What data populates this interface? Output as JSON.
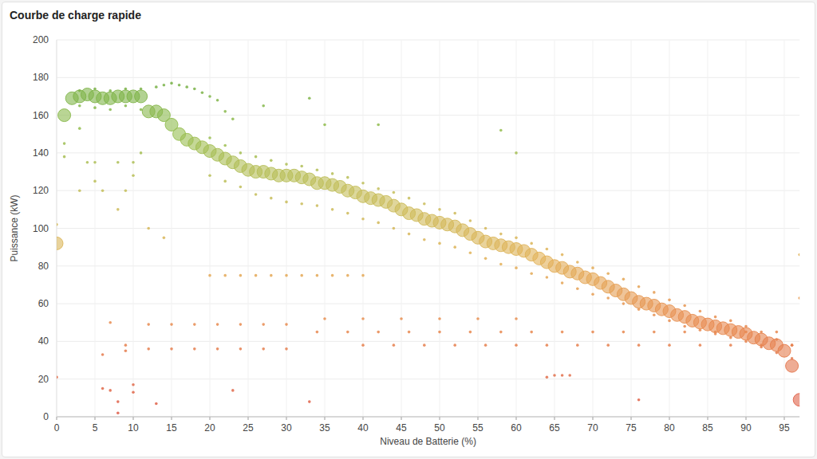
{
  "chart_data": {
    "type": "scatter",
    "title": "Courbe de charge rapide",
    "x_label": "Niveau de Batterie (%)",
    "y_label": "Puissance (kW)",
    "xlim": [
      0,
      97
    ],
    "xticks": [
      0,
      5,
      10,
      15,
      20,
      25,
      30,
      35,
      40,
      45,
      50,
      55,
      60,
      65,
      70,
      75,
      80,
      85,
      90,
      95
    ],
    "ylim": [
      0,
      200
    ],
    "yticks": [
      0,
      20,
      40,
      60,
      80,
      100,
      120,
      140,
      160,
      180,
      200
    ],
    "grid": true,
    "series": [
      {
        "marker": "dot",
        "x": [
          20,
          22,
          24,
          26,
          28,
          30,
          32,
          34,
          36,
          38,
          40,
          42,
          44,
          46,
          48,
          50,
          52,
          54,
          56,
          58,
          60,
          62,
          64,
          66,
          68,
          70,
          72,
          74,
          76,
          78,
          80,
          82,
          84,
          86,
          88,
          90,
          92,
          94,
          96,
          20,
          22,
          24,
          26,
          28,
          30,
          32,
          34,
          36,
          38,
          40,
          42,
          44,
          46,
          48,
          50,
          52,
          54,
          56,
          58,
          60,
          62,
          64,
          66,
          68,
          70,
          72,
          74,
          76,
          78,
          80,
          82,
          84,
          86,
          88,
          90,
          92,
          94,
          96,
          20,
          22,
          24,
          26,
          28,
          30,
          32,
          34,
          36,
          38,
          40,
          12,
          15,
          18,
          21,
          24,
          27,
          30,
          34,
          38,
          42,
          46,
          50,
          54,
          58,
          62,
          66,
          70,
          74,
          78,
          82,
          86,
          90,
          94,
          35,
          40,
          45,
          50,
          55,
          60,
          12,
          15,
          18,
          21,
          24,
          27,
          30,
          40,
          44,
          48,
          52,
          56,
          60,
          64,
          68,
          72,
          76,
          80,
          84,
          88,
          92,
          96,
          3,
          5,
          7,
          9,
          11,
          3,
          5,
          7,
          9,
          11,
          5,
          8,
          10,
          13,
          14,
          15,
          16,
          17,
          18,
          19,
          20,
          21,
          22,
          23,
          0,
          0,
          6,
          7,
          8,
          8,
          10,
          10,
          13,
          23,
          33,
          76,
          64,
          65,
          66,
          67,
          97,
          97,
          33,
          35,
          42,
          58,
          60,
          27,
          1,
          1,
          3,
          4,
          5,
          6,
          8,
          9,
          10,
          11,
          7,
          6,
          9,
          9,
          12,
          14,
          3
        ],
        "values": [
          148,
          144,
          140,
          138,
          136,
          134,
          133,
          131,
          129,
          127,
          124,
          121,
          119,
          116,
          113,
          110,
          108,
          104,
          100,
          97,
          95,
          92,
          89,
          86,
          82,
          79,
          76,
          73,
          69,
          66,
          62,
          59,
          56,
          53,
          51,
          48,
          45,
          41,
          38,
          128,
          125,
          122,
          118,
          116,
          114,
          113,
          112,
          110,
          108,
          105,
          103,
          100,
          97,
          94,
          92,
          90,
          87,
          84,
          81,
          79,
          76,
          74,
          71,
          68,
          65,
          63,
          60,
          57,
          54,
          51,
          48,
          46,
          44,
          42,
          40,
          37,
          34,
          31,
          75,
          75,
          75,
          75,
          75,
          75,
          75,
          75,
          75,
          75,
          75,
          49,
          49,
          49,
          49,
          49,
          49,
          49,
          45,
          45,
          45,
          45,
          45,
          45,
          45,
          45,
          45,
          45,
          45,
          45,
          45,
          45,
          45,
          45,
          52,
          52,
          52,
          52,
          52,
          52,
          36,
          36,
          36,
          36,
          36,
          36,
          36,
          38,
          38,
          38,
          38,
          38,
          38,
          38,
          38,
          38,
          38,
          38,
          38,
          38,
          38,
          38,
          173,
          174,
          173,
          174,
          174,
          165,
          164,
          163,
          165,
          163,
          135,
          135,
          128,
          175,
          176,
          177,
          176,
          175,
          174,
          172,
          170,
          168,
          162,
          158,
          21,
          102,
          15,
          14,
          2,
          8,
          13,
          17,
          7,
          14,
          8,
          9,
          21,
          22,
          22,
          22,
          86,
          63,
          169,
          155,
          155,
          152,
          140,
          165,
          145,
          138,
          153,
          135,
          125,
          120,
          110,
          120,
          135,
          140,
          50,
          33,
          38,
          35,
          100,
          95,
          120
        ]
      },
      {
        "marker": "bubble",
        "x": [
          0,
          1,
          2,
          3,
          4,
          5,
          6,
          7,
          8,
          9,
          10,
          11,
          12,
          13,
          14,
          15,
          16,
          17,
          18,
          19,
          20,
          21,
          22,
          23,
          24,
          25,
          26,
          27,
          28,
          29,
          30,
          31,
          32,
          33,
          34,
          35,
          36,
          37,
          38,
          39,
          40,
          41,
          42,
          43,
          44,
          45,
          46,
          47,
          48,
          49,
          50,
          51,
          52,
          53,
          54,
          55,
          56,
          57,
          58,
          59,
          60,
          61,
          62,
          63,
          64,
          65,
          66,
          67,
          68,
          69,
          70,
          71,
          72,
          73,
          74,
          75,
          76,
          77,
          78,
          79,
          80,
          81,
          82,
          83,
          84,
          85,
          86,
          87,
          88,
          89,
          90,
          91,
          92,
          93,
          94,
          95,
          96,
          97
        ],
        "values": [
          92,
          160,
          169,
          170,
          171,
          170,
          169,
          169,
          170,
          170,
          170,
          170,
          162,
          162,
          160,
          155,
          150,
          147,
          145,
          143,
          141,
          139,
          137,
          135,
          133,
          131,
          130,
          130,
          129,
          128,
          128,
          128,
          127,
          126,
          124,
          124,
          123,
          122,
          120,
          119,
          117,
          116,
          115,
          114,
          112,
          110,
          108,
          107,
          105,
          104,
          103,
          102,
          101,
          99,
          97,
          95,
          93,
          92,
          91,
          90,
          89,
          88,
          86,
          84,
          82,
          80,
          79,
          77,
          76,
          74,
          73,
          71,
          69,
          67,
          65,
          63,
          61,
          60,
          59,
          57,
          56,
          54,
          53,
          51,
          50,
          49,
          48,
          47,
          46,
          45,
          44,
          42,
          41,
          39,
          38,
          35,
          27,
          9
        ]
      }
    ]
  }
}
